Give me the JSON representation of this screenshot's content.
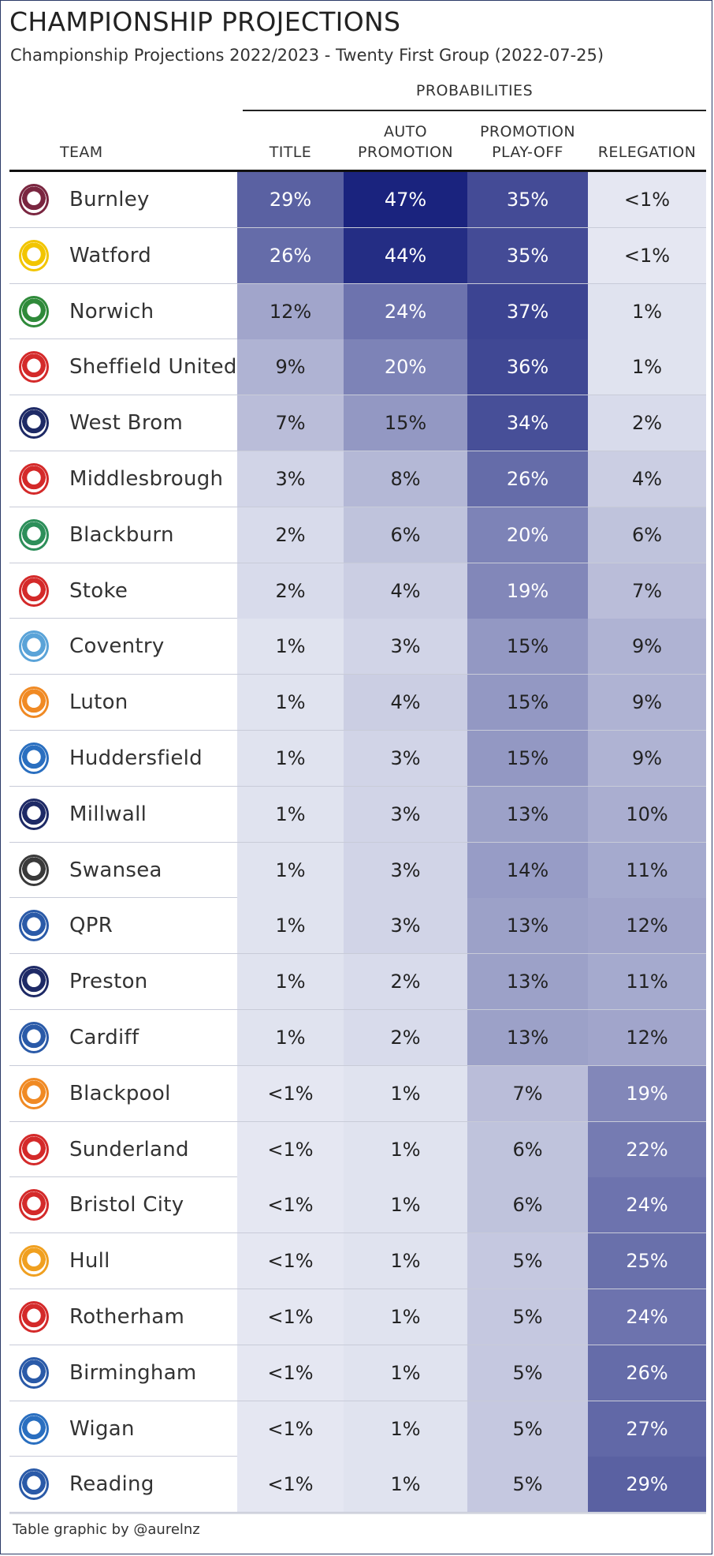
{
  "title": "CHAMPIONSHIP PROJECTIONS",
  "subtitle": "Championship Projections 2022/2023 - Twenty First Group (2022-07-25)",
  "footer": "Table graphic by @aurelnz",
  "chart_data": {
    "type": "table",
    "group_label": "PROBABILITIES",
    "columns": {
      "team": [
        "TEAM"
      ],
      "title": [
        "TITLE"
      ],
      "auto": [
        "AUTO",
        "PROMOTION"
      ],
      "playoff": [
        "PROMOTION",
        "PLAY-OFF"
      ],
      "relegation": [
        "RELEGATION"
      ]
    },
    "rows": [
      {
        "team": "Burnley",
        "title": "29%",
        "auto": "47%",
        "playoff": "35%",
        "relegation": "<1%",
        "v": [
          29,
          47,
          35,
          0.5
        ],
        "logo_color": "#7a2640"
      },
      {
        "team": "Watford",
        "title": "26%",
        "auto": "44%",
        "playoff": "35%",
        "relegation": "<1%",
        "v": [
          26,
          44,
          35,
          0.5
        ],
        "logo_color": "#f2c500"
      },
      {
        "team": "Norwich",
        "title": "12%",
        "auto": "24%",
        "playoff": "37%",
        "relegation": "1%",
        "v": [
          12,
          24,
          37,
          1
        ],
        "logo_color": "#2f8a3a"
      },
      {
        "team": "Sheffield United",
        "title": "9%",
        "auto": "20%",
        "playoff": "36%",
        "relegation": "1%",
        "v": [
          9,
          20,
          36,
          1
        ],
        "logo_color": "#d42a2a"
      },
      {
        "team": "West Brom",
        "title": "7%",
        "auto": "15%",
        "playoff": "34%",
        "relegation": "2%",
        "v": [
          7,
          15,
          34,
          2
        ],
        "logo_color": "#1e2a66"
      },
      {
        "team": "Middlesbrough",
        "title": "3%",
        "auto": "8%",
        "playoff": "26%",
        "relegation": "4%",
        "v": [
          3,
          8,
          26,
          4
        ],
        "logo_color": "#d42a2a"
      },
      {
        "team": "Blackburn",
        "title": "2%",
        "auto": "6%",
        "playoff": "20%",
        "relegation": "6%",
        "v": [
          2,
          6,
          20,
          6
        ],
        "logo_color": "#2d8f5a"
      },
      {
        "team": "Stoke",
        "title": "2%",
        "auto": "4%",
        "playoff": "19%",
        "relegation": "7%",
        "v": [
          2,
          4,
          19,
          7
        ],
        "logo_color": "#d42a2a"
      },
      {
        "team": "Coventry",
        "title": "1%",
        "auto": "3%",
        "playoff": "15%",
        "relegation": "9%",
        "v": [
          1,
          3,
          15,
          9
        ],
        "logo_color": "#5aa3d8"
      },
      {
        "team": "Luton",
        "title": "1%",
        "auto": "4%",
        "playoff": "15%",
        "relegation": "9%",
        "v": [
          1,
          4,
          15,
          9
        ],
        "logo_color": "#f08a24"
      },
      {
        "team": "Huddersfield",
        "title": "1%",
        "auto": "3%",
        "playoff": "15%",
        "relegation": "9%",
        "v": [
          1,
          3,
          15,
          9
        ],
        "logo_color": "#2a6fc0"
      },
      {
        "team": "Millwall",
        "title": "1%",
        "auto": "3%",
        "playoff": "13%",
        "relegation": "10%",
        "v": [
          1,
          3,
          13,
          10
        ],
        "logo_color": "#1e2a66"
      },
      {
        "team": "Swansea",
        "title": "1%",
        "auto": "3%",
        "playoff": "14%",
        "relegation": "11%",
        "v": [
          1,
          3,
          14,
          11
        ],
        "logo_color": "#3a3a3a"
      },
      {
        "team": "QPR",
        "title": "1%",
        "auto": "3%",
        "playoff": "13%",
        "relegation": "12%",
        "v": [
          1,
          3,
          13,
          12
        ],
        "logo_color": "#2a5aa8"
      },
      {
        "team": "Preston",
        "title": "1%",
        "auto": "2%",
        "playoff": "13%",
        "relegation": "11%",
        "v": [
          1,
          2,
          13,
          11
        ],
        "logo_color": "#1e2a66"
      },
      {
        "team": "Cardiff",
        "title": "1%",
        "auto": "2%",
        "playoff": "13%",
        "relegation": "12%",
        "v": [
          1,
          2,
          13,
          12
        ],
        "logo_color": "#2a5aa8"
      },
      {
        "team": "Blackpool",
        "title": "<1%",
        "auto": "1%",
        "playoff": "7%",
        "relegation": "19%",
        "v": [
          0.5,
          1,
          7,
          19
        ],
        "logo_color": "#f08a24"
      },
      {
        "team": "Sunderland",
        "title": "<1%",
        "auto": "1%",
        "playoff": "6%",
        "relegation": "22%",
        "v": [
          0.5,
          1,
          6,
          22
        ],
        "logo_color": "#d42a2a"
      },
      {
        "team": "Bristol City",
        "title": "<1%",
        "auto": "1%",
        "playoff": "6%",
        "relegation": "24%",
        "v": [
          0.5,
          1,
          6,
          24
        ],
        "logo_color": "#d42a2a"
      },
      {
        "team": "Hull",
        "title": "<1%",
        "auto": "1%",
        "playoff": "5%",
        "relegation": "25%",
        "v": [
          0.5,
          1,
          5,
          25
        ],
        "logo_color": "#f0a020"
      },
      {
        "team": "Rotherham",
        "title": "<1%",
        "auto": "1%",
        "playoff": "5%",
        "relegation": "24%",
        "v": [
          0.5,
          1,
          5,
          24
        ],
        "logo_color": "#d42a2a"
      },
      {
        "team": "Birmingham",
        "title": "<1%",
        "auto": "1%",
        "playoff": "5%",
        "relegation": "26%",
        "v": [
          0.5,
          1,
          5,
          26
        ],
        "logo_color": "#2a5aa8"
      },
      {
        "team": "Wigan",
        "title": "<1%",
        "auto": "1%",
        "playoff": "5%",
        "relegation": "27%",
        "v": [
          0.5,
          1,
          5,
          27
        ],
        "logo_color": "#2a6fc0"
      },
      {
        "team": "Reading",
        "title": "<1%",
        "auto": "1%",
        "playoff": "5%",
        "relegation": "29%",
        "v": [
          0.5,
          1,
          5,
          29
        ],
        "logo_color": "#2a5aa8"
      }
    ],
    "colors": {
      "high": "#1a237e",
      "low": "#eceef6"
    }
  }
}
